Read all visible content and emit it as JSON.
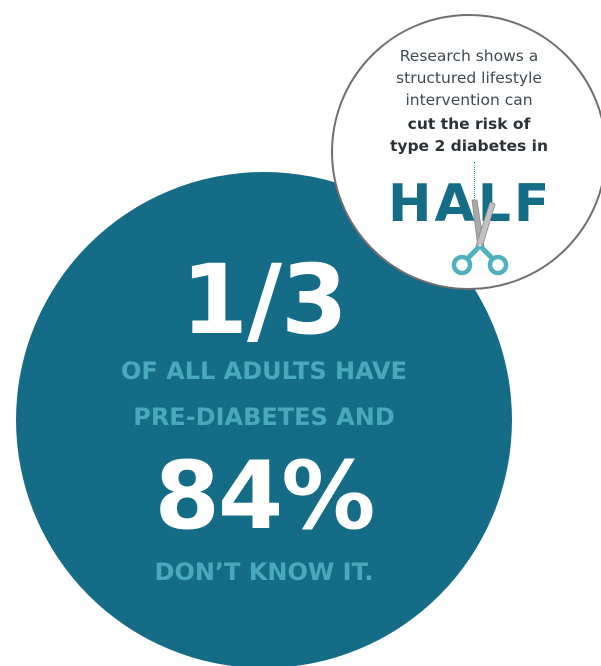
{
  "main_circle": {
    "stat_one": "1/3",
    "line_one": "OF ALL ADULTS HAVE",
    "line_two": "PRE-DIABETES AND",
    "stat_two": "84%",
    "line_three": "DON’T KNOW IT."
  },
  "callout": {
    "line_1": "Research shows a",
    "line_2": "structured lifestyle",
    "line_3": "intervention can",
    "line_4": "cut the risk of",
    "line_5": "type 2 diabetes in",
    "half_word": "HALF"
  },
  "colors": {
    "teal_dark": "#146c86",
    "teal_light": "#4aa8bd",
    "scissor_handle": "#4fb1c0",
    "scissor_blade": "#a9a9a9"
  },
  "icons": {
    "scissors": "scissors-icon"
  }
}
